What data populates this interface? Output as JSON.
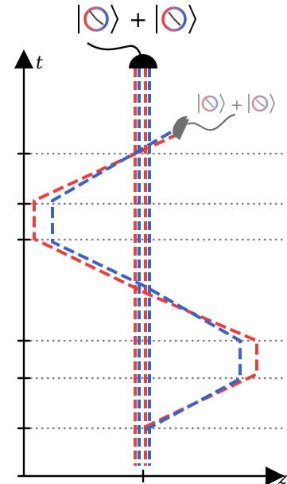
{
  "axes": {
    "time_label": "t",
    "space_label": "z"
  },
  "top_state": {
    "plus": "+",
    "ket_count": 2
  },
  "side_state": {
    "plus": "+",
    "ket_count": 2
  },
  "colors": {
    "red": "#e8403f",
    "blue": "#3a63c4",
    "detector": "#000000",
    "side_detector": "#707070",
    "gridline": "#7a7a7a"
  },
  "icons": {
    "top_detector": "dome-detector-icon",
    "side_detector": "dome-detector-icon",
    "clock": "clock-icon"
  },
  "horizontal_gridlines_count": 6
}
